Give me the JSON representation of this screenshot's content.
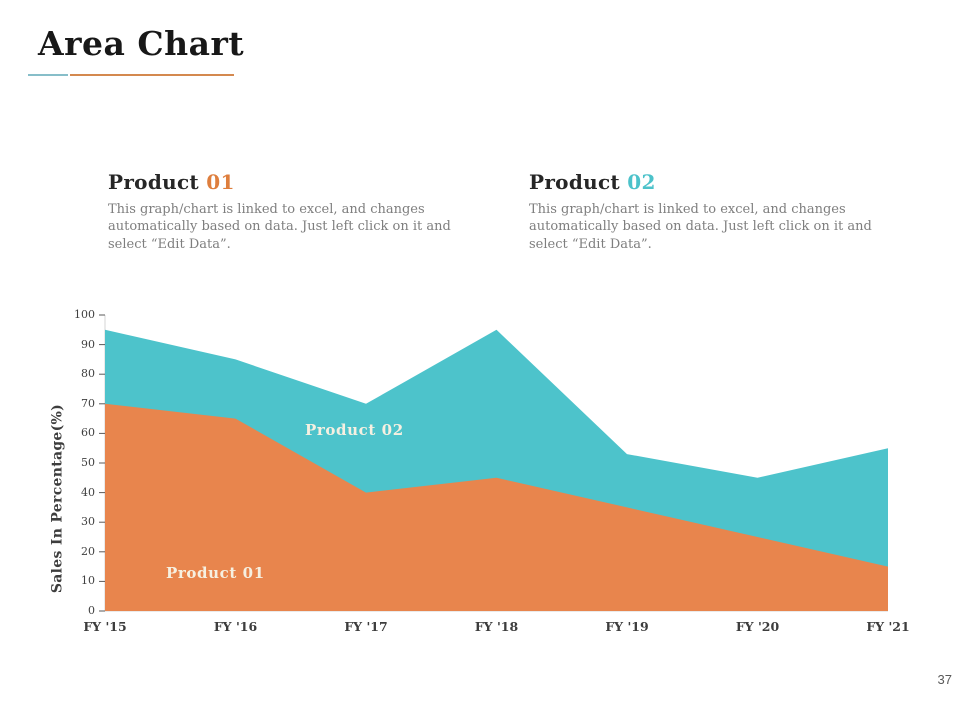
{
  "slide": {
    "title": "Area Chart",
    "page_number": "37"
  },
  "products": [
    {
      "label": "Product",
      "number": "01",
      "accent_color": "#DE7E3D",
      "description": "This graph/chart is linked to excel, and changes automatically based on data. Just left click on it and select “Edit Data”."
    },
    {
      "label": "Product",
      "number": "02",
      "accent_color": "#4CC2CA",
      "description": "This graph/chart is linked to excel, and changes automatically based on data. Just left click on it and select “Edit Data”."
    }
  ],
  "decoration": {
    "underline_teal": "#87BEC9",
    "underline_orange": "#D4894F"
  },
  "chart_data": {
    "type": "area",
    "stacked": true,
    "categories": [
      "FY '15",
      "FY '16",
      "FY '17",
      "FY '18",
      "FY '19",
      "FY '20",
      "FY '21"
    ],
    "series": [
      {
        "name": "Product 01",
        "color": "#E8854D",
        "values": [
          70,
          65,
          40,
          45,
          35,
          25,
          15
        ]
      },
      {
        "name": "Product 02",
        "color": "#4DC3CB",
        "values": [
          25,
          20,
          30,
          50,
          18,
          20,
          40
        ]
      }
    ],
    "stacked_totals": [
      95,
      85,
      70,
      95,
      53,
      45,
      55
    ],
    "ylabel": "Sales In Percentage(%)",
    "xlabel": "",
    "ylim": [
      0,
      100
    ],
    "yticks": [
      0,
      10,
      20,
      30,
      40,
      50,
      60,
      70,
      80,
      90,
      100
    ],
    "grid": false,
    "legend": "inline-labels",
    "axis_color": "#d6d6d6",
    "tick_color": "#595959"
  }
}
